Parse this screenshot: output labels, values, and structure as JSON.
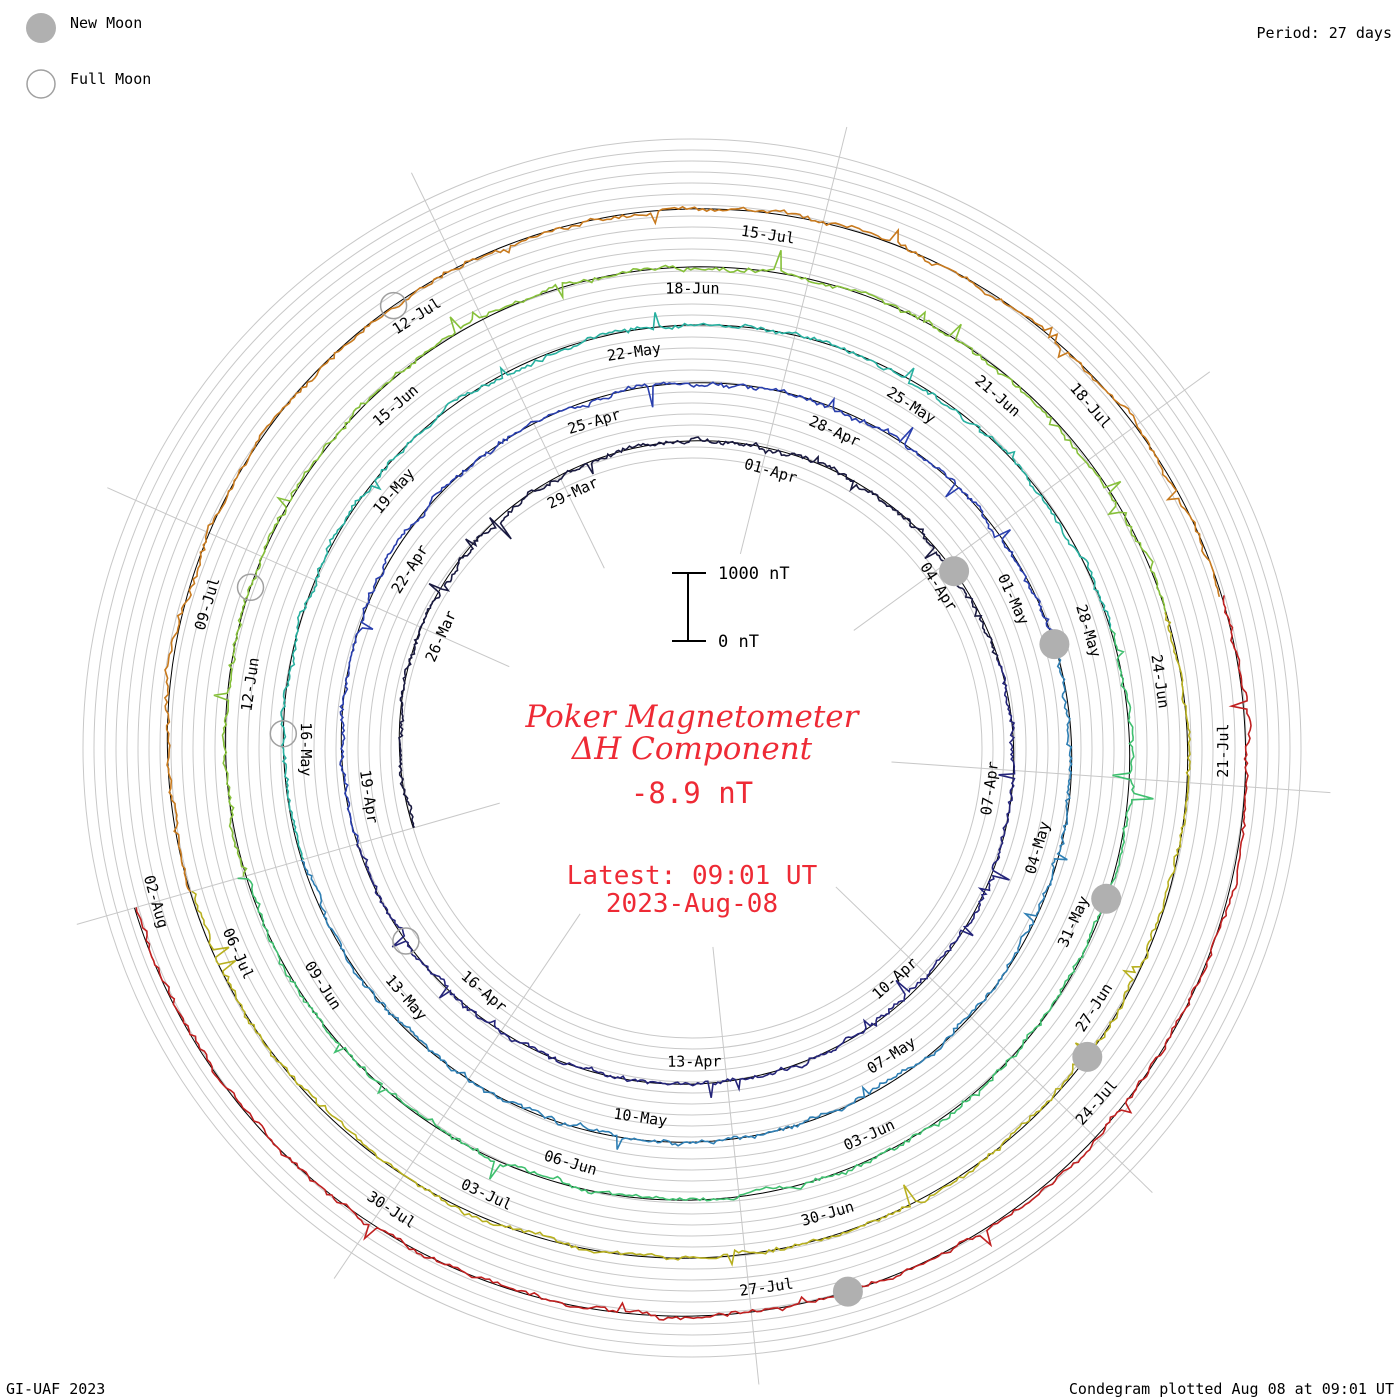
{
  "chart_data": {
    "type": "line",
    "title": "Poker Magnetometer",
    "subtitle": "ΔH Component",
    "current_value": "-8.9 nT",
    "latest_time": "Latest: 09:01 UT",
    "latest_date": "2023-Aug-08",
    "period_label": "Period: 27 days",
    "scale_bar": {
      "top_label": "1000 nT",
      "bottom_label": "0 nT",
      "max_nT": 1000,
      "min_nT": 0
    },
    "legend": [
      {
        "label": "New Moon",
        "marker": "filled-circle",
        "color": "#b0b0b0"
      },
      {
        "label": "Full Moon",
        "marker": "open-circle",
        "color": "#a0a0a0"
      }
    ],
    "footer_left": "GI-UAF 2023",
    "footer_right": "Condegram plotted Aug 08 at 09:01 UT",
    "date_labels": [
      "26-Mar",
      "29-Mar",
      "01-Apr",
      "04-Apr",
      "07-Apr",
      "10-Apr",
      "13-Apr",
      "16-Apr",
      "19-Apr",
      "22-Apr",
      "25-Apr",
      "28-Apr",
      "01-May",
      "04-May",
      "07-May",
      "10-May",
      "13-May",
      "16-May",
      "19-May",
      "22-May",
      "25-May",
      "28-May",
      "31-May",
      "03-Jun",
      "06-Jun",
      "09-Jun",
      "12-Jun",
      "15-Jun",
      "18-Jun",
      "21-Jun",
      "24-Jun",
      "27-Jun",
      "30-Jun",
      "03-Jul",
      "06-Jul",
      "09-Jul",
      "12-Jul",
      "15-Jul",
      "18-Jul",
      "21-Jul",
      "24-Jul",
      "27-Jul",
      "30-Jul",
      "02-Aug"
    ],
    "series": [
      {
        "color": "#1a1a40"
      },
      {
        "color": "#25257a"
      },
      {
        "color": "#2a3fae"
      },
      {
        "color": "#2f7fb4"
      },
      {
        "color": "#28b0a0"
      },
      {
        "color": "#3fbf6f"
      },
      {
        "color": "#86c03a"
      },
      {
        "color": "#b8b020"
      },
      {
        "color": "#c87a1e"
      },
      {
        "color": "#c02020"
      }
    ]
  }
}
